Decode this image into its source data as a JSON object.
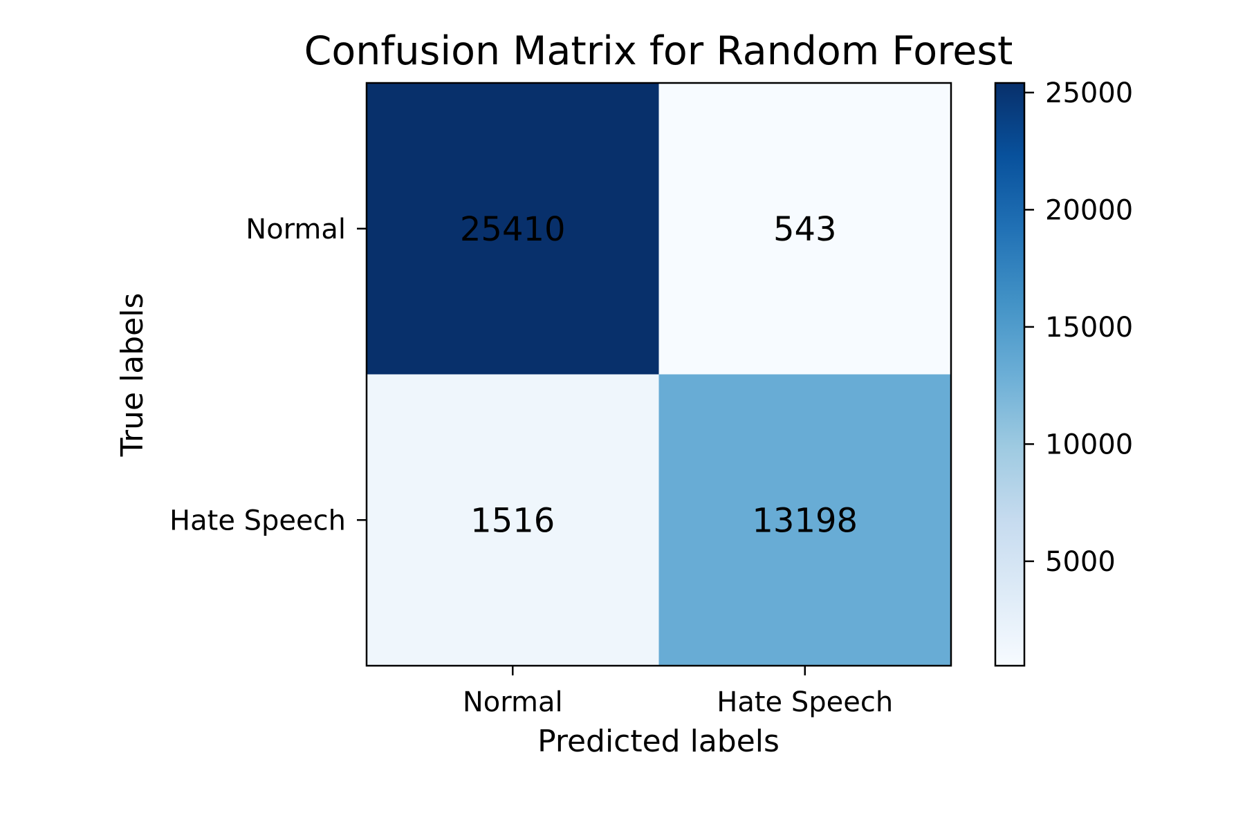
{
  "chart_data": {
    "type": "heatmap",
    "title": "Confusion Matrix for Random Forest",
    "xlabel": "Predicted labels",
    "ylabel": "True labels",
    "x_categories": [
      "Normal",
      "Hate Speech"
    ],
    "y_categories": [
      "Normal",
      "Hate Speech"
    ],
    "values": [
      [
        25410,
        543
      ],
      [
        1516,
        13198
      ]
    ],
    "colormap": "Blues",
    "color_range": [
      543,
      25410
    ],
    "colorbar_ticks": [
      5000,
      10000,
      15000,
      20000,
      25000
    ],
    "colorbar_tick_labels": [
      "5000",
      "10000",
      "15000",
      "20000",
      "25000"
    ],
    "grid": false
  }
}
